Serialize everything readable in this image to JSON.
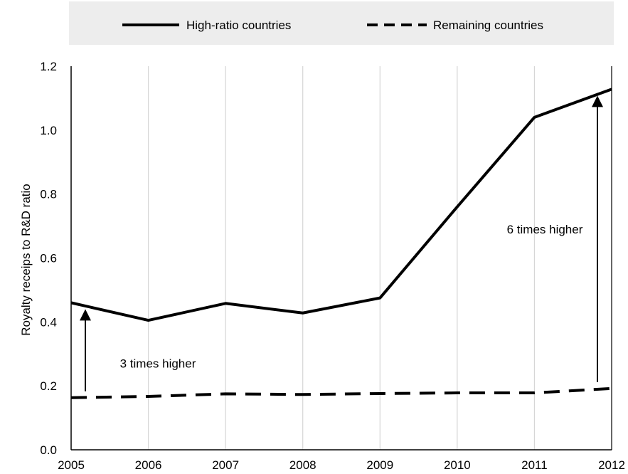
{
  "chart_data": {
    "type": "line",
    "title": "",
    "xlabel": "",
    "ylabel": "Royalty receips to R&D ratio",
    "x": [
      "2005",
      "2006",
      "2007",
      "2008",
      "2009",
      "2010",
      "2011",
      "2012"
    ],
    "ylim": [
      0.0,
      1.2
    ],
    "yticks": [
      "0.0",
      "0.2",
      "0.4",
      "0.6",
      "0.8",
      "1.0",
      "1.2"
    ],
    "grid": "vertical",
    "legend_position": "top",
    "series": [
      {
        "name": "High-ratio countries",
        "style": "solid",
        "color": "#000000",
        "values": [
          0.46,
          0.405,
          0.458,
          0.428,
          0.475,
          0.76,
          1.04,
          1.128
        ]
      },
      {
        "name": "Remaining countries",
        "style": "dashed",
        "color": "#000000",
        "values": [
          0.163,
          0.167,
          0.175,
          0.173,
          0.176,
          0.178,
          0.178,
          0.192
        ]
      }
    ],
    "annotations": [
      {
        "text": "3 times higher",
        "x": "2005"
      },
      {
        "text": "6 times higher",
        "x": "2012"
      }
    ]
  }
}
